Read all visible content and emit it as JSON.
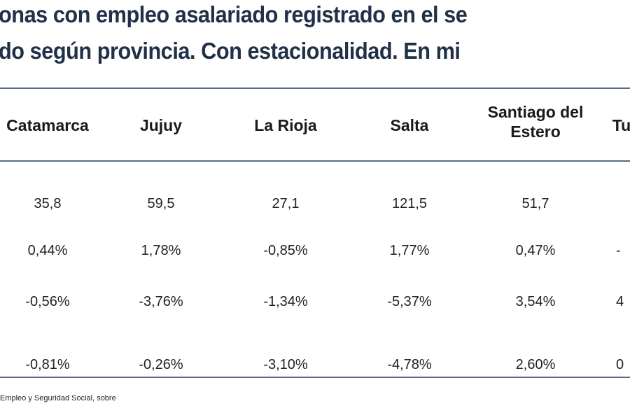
{
  "title": {
    "line1": "onas con empleo asalariado registrado en el se",
    "line2": "do según provincia. Con estacionalidad. En mi"
  },
  "table": {
    "headers": [
      "Catamarca",
      "Jujuy",
      "La Rioja",
      "Salta",
      "Santiago del Estero",
      "Tu"
    ],
    "rows": [
      [
        "35,8",
        "59,5",
        "27,1",
        "121,5",
        "51,7",
        ""
      ],
      [
        "0,44%",
        "1,78%",
        "-0,85%",
        "1,77%",
        "0,47%",
        "-"
      ],
      [
        "-0,56%",
        "-3,76%",
        "-1,34%",
        "-5,37%",
        "3,54%",
        "4"
      ],
      [
        "-0,81%",
        "-0,26%",
        "-3,10%",
        "-4,78%",
        "2,60%",
        "0"
      ]
    ]
  },
  "footer": "Empleo y Seguridad Social, sobre",
  "colors": {
    "title": "#1f3047",
    "rule": "#5b6b80"
  }
}
